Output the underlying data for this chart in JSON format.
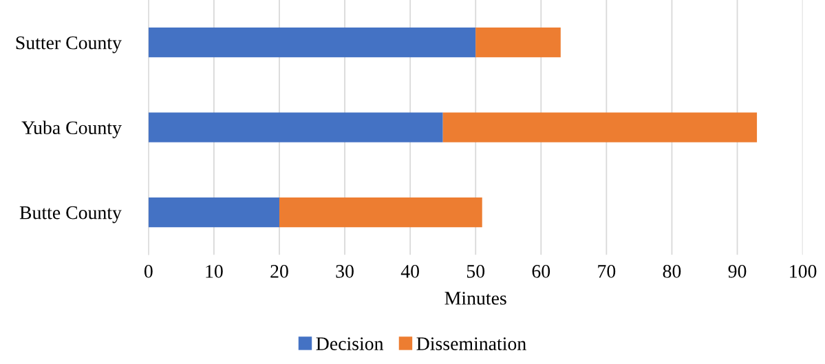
{
  "chart_data": {
    "type": "bar",
    "orientation": "horizontal",
    "stacked": true,
    "xlabel": "Minutes",
    "categories": [
      "Sutter County",
      "Yuba County",
      "Butte County"
    ],
    "series": [
      {
        "name": "Decision",
        "color": "#4472c4",
        "values": [
          50,
          45,
          20
        ]
      },
      {
        "name": "Dissemination",
        "color": "#ed7d31",
        "values": [
          13,
          48,
          31
        ]
      }
    ],
    "xlim": [
      0,
      100
    ],
    "xticks": [
      0,
      10,
      20,
      30,
      40,
      50,
      60,
      70,
      80,
      90,
      100
    ],
    "grid": "x",
    "legend": "bottom"
  }
}
